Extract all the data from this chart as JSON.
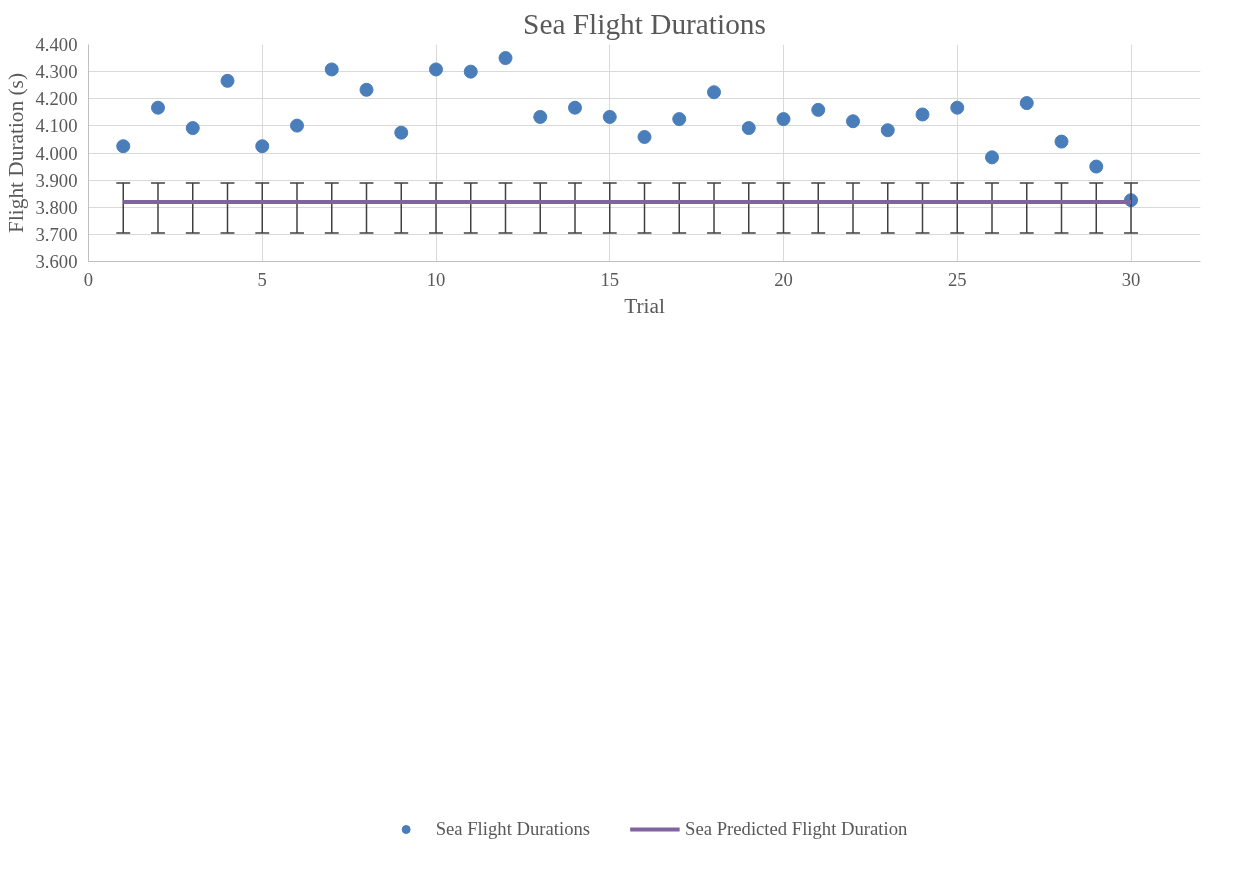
{
  "chart_data": {
    "type": "scatter",
    "title": "Sea Flight Durations",
    "xlabel": "Trial",
    "ylabel": "Flight Duration (s)",
    "xlim": [
      0,
      32
    ],
    "xticks": [
      0,
      5,
      10,
      15,
      20,
      25,
      30
    ],
    "ylim": [
      3.6,
      4.4
    ],
    "yticks": [
      {
        "value": 3.6,
        "label": "3.600"
      },
      {
        "value": 3.7,
        "label": "3.700"
      },
      {
        "value": 3.8,
        "label": "3.800"
      },
      {
        "value": 3.9,
        "label": "3.900"
      },
      {
        "value": 4.0,
        "label": "4.000"
      },
      {
        "value": 4.1,
        "label": "4.100"
      },
      {
        "value": 4.2,
        "label": "4.200"
      },
      {
        "value": 4.3,
        "label": "4.300"
      },
      {
        "value": 4.4,
        "label": "4.400"
      }
    ],
    "grid": true,
    "legend": "bottom",
    "series": [
      {
        "name": "Sea Flight Durations",
        "marker": "circle",
        "color": "#4a7ebb",
        "x": [
          1,
          2,
          3,
          4,
          5,
          6,
          7,
          8,
          9,
          10,
          11,
          12,
          13,
          14,
          15,
          16,
          17,
          18,
          19,
          20,
          21,
          22,
          23,
          24,
          25,
          26,
          27,
          28,
          29,
          30
        ],
        "values": [
          4.025,
          4.167,
          4.092,
          4.266,
          4.025,
          4.101,
          4.308,
          4.233,
          4.075,
          4.308,
          4.3,
          4.35,
          4.133,
          4.167,
          4.133,
          4.059,
          4.125,
          4.224,
          4.092,
          4.125,
          4.159,
          4.117,
          4.084,
          4.142,
          4.167,
          3.984,
          4.184,
          4.042,
          3.95,
          3.826
        ]
      },
      {
        "name": "Sea Predicted Flight Duration",
        "type": "line",
        "line_style": "solid",
        "color": "#8064a2",
        "x": [
          1,
          2,
          3,
          4,
          5,
          6,
          7,
          8,
          9,
          10,
          11,
          12,
          13,
          14,
          15,
          16,
          17,
          18,
          19,
          20,
          21,
          22,
          23,
          24,
          25,
          26,
          27,
          28,
          29,
          30
        ],
        "values": [
          3.819,
          3.819,
          3.819,
          3.819,
          3.819,
          3.819,
          3.819,
          3.819,
          3.819,
          3.819,
          3.819,
          3.819,
          3.819,
          3.819,
          3.819,
          3.819,
          3.819,
          3.819,
          3.819,
          3.819,
          3.819,
          3.819,
          3.819,
          3.819,
          3.819,
          3.819,
          3.819,
          3.819,
          3.819,
          3.819
        ],
        "errors": [
          [
            3.705,
            3.889
          ],
          [
            3.705,
            3.889
          ],
          [
            3.705,
            3.889
          ],
          [
            3.705,
            3.889
          ],
          [
            3.705,
            3.889
          ],
          [
            3.705,
            3.889
          ],
          [
            3.705,
            3.889
          ],
          [
            3.705,
            3.889
          ],
          [
            3.705,
            3.889
          ],
          [
            3.705,
            3.889
          ],
          [
            3.705,
            3.889
          ],
          [
            3.705,
            3.889
          ],
          [
            3.705,
            3.889
          ],
          [
            3.705,
            3.889
          ],
          [
            3.705,
            3.889
          ],
          [
            3.705,
            3.889
          ],
          [
            3.705,
            3.889
          ],
          [
            3.705,
            3.889
          ],
          [
            3.705,
            3.889
          ],
          [
            3.705,
            3.889
          ],
          [
            3.705,
            3.889
          ],
          [
            3.705,
            3.889
          ],
          [
            3.705,
            3.889
          ],
          [
            3.705,
            3.889
          ],
          [
            3.705,
            3.889
          ],
          [
            3.705,
            3.889
          ],
          [
            3.705,
            3.889
          ],
          [
            3.705,
            3.889
          ],
          [
            3.705,
            3.889
          ],
          [
            3.705,
            3.889
          ]
        ]
      }
    ]
  }
}
